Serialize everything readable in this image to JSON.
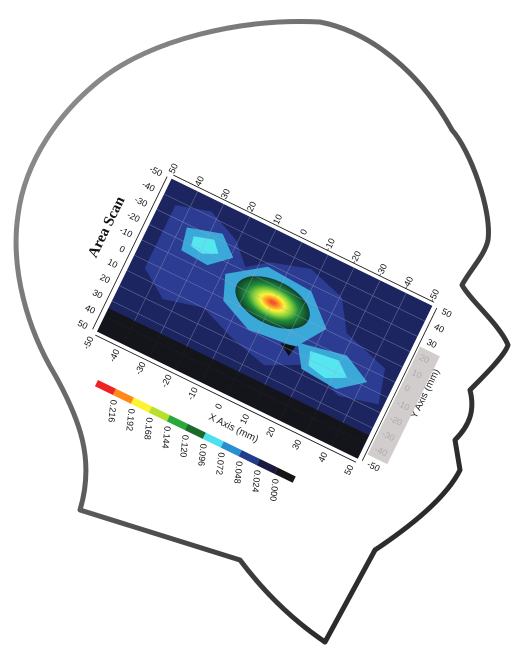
{
  "title": "Area Scan",
  "x_axis": {
    "label": "X Axis (mm)",
    "ticks": [
      "50",
      "40",
      "30",
      "20",
      "10",
      "0",
      "-10",
      "-20",
      "-30",
      "-40",
      "-50"
    ]
  },
  "y_axis": {
    "label": "Y Axis (mm)",
    "ticks": [
      "-50",
      "-40",
      "-30",
      "-20",
      "-10",
      "0",
      "10",
      "20",
      "30",
      "40",
      "50"
    ]
  },
  "legend": {
    "colors": [
      "#ee2222",
      "#ff8a1a",
      "#fff230",
      "#b6e02c",
      "#2aa83a",
      "#1a6a2a",
      "#4de0ef",
      "#2a8fd0",
      "#203c8a",
      "#1a1a40",
      "#151515"
    ],
    "labels": [
      "0.216",
      "0.192",
      "0.168",
      "0.144",
      "0.120",
      "0.096",
      "0.072",
      "0.048",
      "0.024",
      "0.000"
    ]
  }
}
